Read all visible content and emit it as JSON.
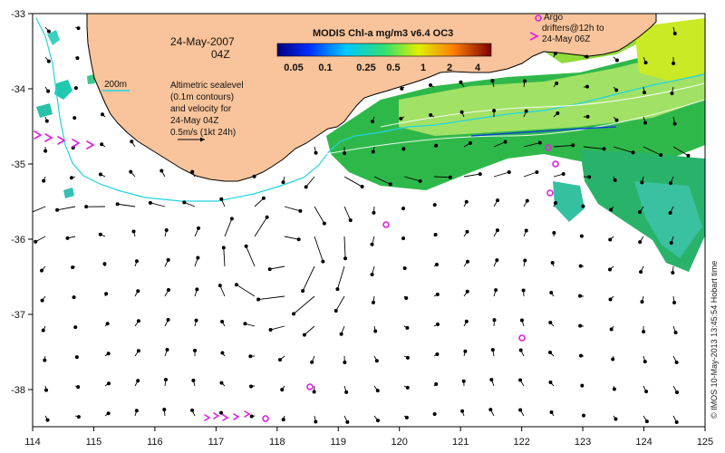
{
  "map": {
    "date_label": "24-May-2007",
    "time_label": "04Z",
    "contour_label": "200m",
    "legend_lines": [
      "Altimetric sealevel",
      "(0.1m contours)",
      "and velocity for",
      "24-May 04Z",
      "0.5m/s (1kt 24h)"
    ],
    "argo_lines": [
      "Argo",
      "drifters@12h to",
      "24-May 06Z"
    ],
    "credit": "© IMOS 10-May-2013 13:45:54 Hobart time",
    "colorbar": {
      "title": "MODIS Chl-a mg/m3 v6.4 OC3",
      "ticks": [
        "0.05",
        "0.1",
        "0.25",
        "0.5",
        "1",
        "2",
        "4"
      ]
    },
    "x_axis": {
      "ticks": [
        "114",
        "115",
        "116",
        "117",
        "118",
        "119",
        "120",
        "121",
        "122",
        "123",
        "124",
        "125"
      ]
    },
    "y_axis": {
      "ticks": [
        "-33",
        "-34",
        "-35",
        "-36",
        "-37",
        "-38"
      ]
    },
    "colors": {
      "land": "#f9c49b",
      "isobath": "#22d4e0",
      "argo": "#e020e0",
      "vector": "#000000"
    }
  }
}
